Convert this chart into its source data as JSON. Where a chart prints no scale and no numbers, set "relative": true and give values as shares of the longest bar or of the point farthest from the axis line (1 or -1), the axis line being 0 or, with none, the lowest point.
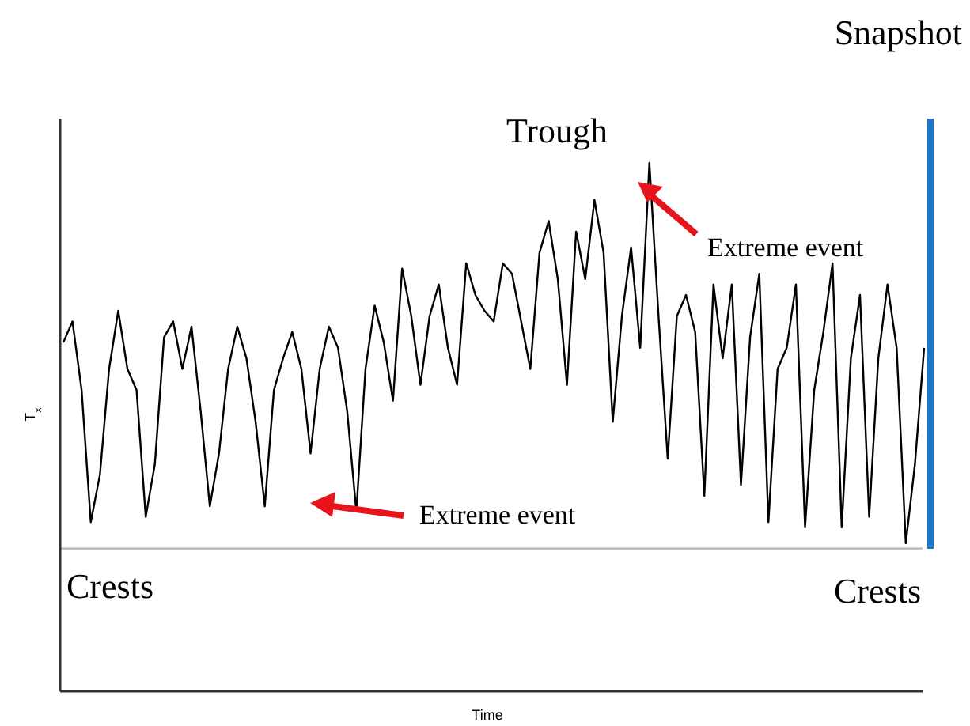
{
  "chart_data": {
    "type": "line",
    "relative": true,
    "xlabel": "Time",
    "ylabel": "T$_{x}$",
    "categories": [
      null,
      null,
      null,
      null,
      null,
      null,
      null,
      null,
      null,
      null,
      null,
      null,
      null,
      null,
      null,
      null,
      null,
      null,
      null,
      null,
      null,
      null,
      null,
      null,
      null,
      null,
      null,
      null,
      null,
      null,
      null,
      null,
      null,
      null,
      null,
      null,
      null,
      null,
      null,
      null,
      null,
      null,
      null,
      null,
      null,
      null,
      null,
      null,
      null,
      null,
      null,
      null,
      null,
      null,
      null,
      null,
      null,
      null,
      null,
      null,
      null,
      null,
      null,
      null,
      null,
      null,
      null,
      null,
      null,
      null,
      null,
      null,
      null,
      null,
      null,
      null,
      null,
      null,
      null,
      null,
      null,
      null,
      null,
      null,
      null,
      null,
      null,
      null,
      null,
      null,
      null,
      null,
      null,
      null,
      null
    ],
    "series": [
      {
        "color": "#000000",
        "values": [
          0.66,
          0.7,
          0.57,
          0.32,
          0.41,
          0.61,
          0.72,
          0.61,
          0.57,
          0.33,
          0.43,
          0.67,
          0.7,
          0.61,
          0.69,
          0.53,
          0.35,
          0.45,
          0.61,
          0.69,
          0.63,
          0.51,
          0.35,
          0.57,
          0.63,
          0.68,
          0.61,
          0.45,
          0.61,
          0.69,
          0.65,
          0.53,
          0.34,
          0.61,
          0.73,
          0.66,
          0.55,
          0.8,
          0.71,
          0.58,
          0.71,
          0.77,
          0.65,
          0.58,
          0.81,
          0.75,
          0.72,
          0.7,
          0.81,
          0.79,
          0.7,
          0.61,
          0.83,
          0.89,
          0.78,
          0.58,
          0.87,
          0.78,
          0.93,
          0.83,
          0.51,
          0.71,
          0.84,
          0.65,
          1,
          0.71,
          0.44,
          0.71,
          0.75,
          0.68,
          0.37,
          0.77,
          0.63,
          0.77,
          0.39,
          0.67,
          0.79,
          0.32,
          0.61,
          0.65,
          0.77,
          0.31,
          0.57,
          0.68,
          0.81,
          0.31,
          0.63,
          0.75,
          0.33,
          0.63,
          0.77,
          0.65,
          0.28,
          0.43,
          0.65
        ]
      }
    ],
    "ref_lines": [
      {
        "axis": "y",
        "value": 0.27,
        "color": "#c0c0c0"
      }
    ],
    "annotations": [
      "Snapshot",
      "Trough",
      "Extreme event",
      "Extreme event",
      "Crests",
      "Crests"
    ],
    "marker": "none",
    "line_style": "solid"
  }
}
